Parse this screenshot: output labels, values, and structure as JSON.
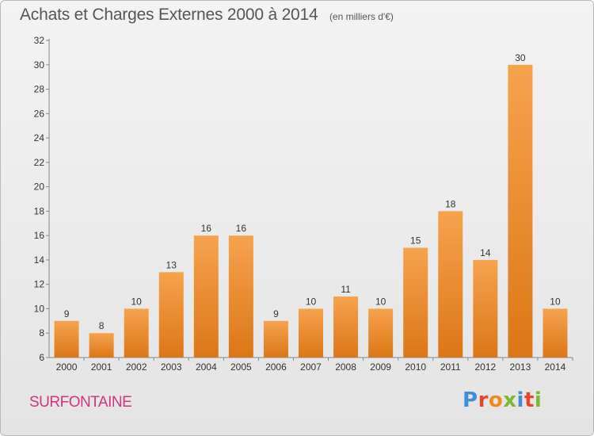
{
  "header": {
    "title": "Achats et Charges Externes 2000 à 2014",
    "unit": "(en milliers d'€)"
  },
  "footer": {
    "commune": "SURFONTAINE",
    "brand": "Proxiti",
    "brand_colors": [
      "#3c8fd8",
      "#e8462b",
      "#f08a1c",
      "#7cb832",
      "#3c8fd8",
      "#e8462b",
      "#7cb832"
    ]
  },
  "colors": {
    "bar_light": "#f6a34e",
    "bar_dark": "#dc7618",
    "axis": "#888888",
    "title": "#555555",
    "commune": "#d0357f"
  },
  "chart_data": {
    "type": "bar",
    "title": "Achats et Charges Externes 2000 à 2014",
    "categories": [
      "2000",
      "2001",
      "2002",
      "2003",
      "2004",
      "2005",
      "2006",
      "2007",
      "2008",
      "2009",
      "2010",
      "2011",
      "2012",
      "2013",
      "2014"
    ],
    "values": [
      9,
      8,
      10,
      13,
      16,
      16,
      9,
      10,
      11,
      10,
      15,
      18,
      14,
      30,
      10
    ],
    "ylim": [
      6,
      32
    ],
    "yticks": [
      6,
      8,
      10,
      12,
      14,
      16,
      18,
      20,
      22,
      24,
      26,
      28,
      30,
      32
    ],
    "xlabel": "",
    "ylabel": "",
    "grid": false,
    "legend": "none"
  }
}
